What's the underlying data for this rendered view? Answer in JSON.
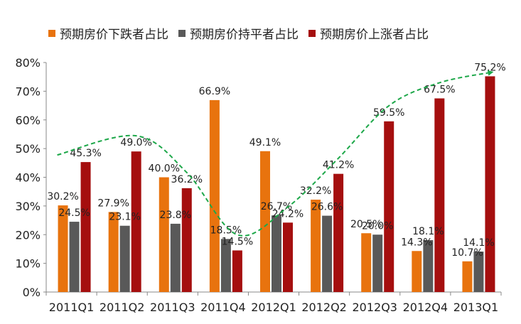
{
  "chart_data": {
    "type": "bar",
    "title": "",
    "xlabel": "",
    "ylabel": "",
    "categories": [
      "2011Q1",
      "2011Q2",
      "2011Q3",
      "2011Q4",
      "2012Q1",
      "2012Q2",
      "2012Q3",
      "2012Q4",
      "2013Q1"
    ],
    "series": [
      {
        "name": "预期房价下跌者占比",
        "color": "#E8730E",
        "values": [
          30.2,
          27.9,
          40.0,
          66.9,
          49.1,
          32.2,
          20.5,
          14.3,
          10.7
        ]
      },
      {
        "name": "预期房价持平者占比",
        "color": "#595959",
        "values": [
          24.5,
          23.1,
          23.8,
          18.5,
          26.7,
          26.6,
          20.0,
          18.1,
          14.1
        ]
      },
      {
        "name": "预期房价上涨者占比",
        "color": "#A50F0F",
        "values": [
          45.3,
          49.0,
          36.2,
          14.5,
          24.2,
          41.2,
          59.5,
          67.5,
          75.2
        ]
      }
    ],
    "data_labels": [
      [
        "30.2%",
        "27.9%",
        "40.0%",
        "66.9%",
        "49.1%",
        "32.2%",
        "20.5%",
        "14.3%",
        "10.7%"
      ],
      [
        "24.5%",
        "23.1%",
        "23.8%",
        "18.5%",
        "26.7%",
        "26.6%",
        "20.0%",
        "18.1%",
        "14.1%"
      ],
      [
        "45.3%",
        "49.0%",
        "36.2%",
        "14.5%",
        "24.2%",
        "41.2%",
        "59.5%",
        "67.5%",
        "75.2%"
      ]
    ],
    "y_ticks": [
      "0%",
      "10%",
      "20%",
      "30%",
      "40%",
      "50%",
      "60%",
      "70%",
      "80%"
    ],
    "ylim": [
      0,
      80
    ],
    "legend_position": "top",
    "grid": false,
    "trend_arrow": {
      "style": "dashed",
      "color": "#1EA84A",
      "series": "预期房价上涨者占比"
    }
  }
}
